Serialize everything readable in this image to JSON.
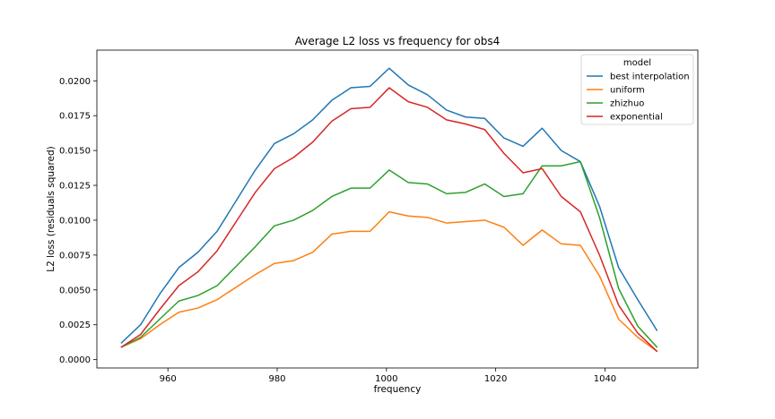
{
  "chart_data": {
    "type": "line",
    "title": "Average L2 loss vs frequency for obs4",
    "xlabel": "frequency",
    "ylabel": "L2 loss (residuals squared)",
    "xlim": [
      947,
      1057
    ],
    "ylim": [
      -0.0006,
      0.0222
    ],
    "xticks": [
      960,
      980,
      1000,
      1020,
      1040
    ],
    "xtick_labels": [
      "960",
      "980",
      "1000",
      "1020",
      "1040"
    ],
    "yticks": [
      0.0,
      0.0025,
      0.005,
      0.0075,
      0.01,
      0.0125,
      0.015,
      0.0175,
      0.02
    ],
    "ytick_labels": [
      "0.0000",
      "0.0025",
      "0.0050",
      "0.0075",
      "0.0100",
      "0.0125",
      "0.0150",
      "0.0175",
      "0.0200"
    ],
    "grid": false,
    "legend": {
      "title": "model",
      "position": "top-right"
    },
    "x": [
      951.5,
      955,
      958.5,
      962,
      965.5,
      969,
      972.5,
      976,
      979.5,
      983,
      986.5,
      990,
      993.5,
      997,
      1000.5,
      1004,
      1007.5,
      1011,
      1014.5,
      1018,
      1021.5,
      1025,
      1028.5,
      1032,
      1035.5,
      1039,
      1042.5,
      1046,
      1049.5
    ],
    "series": [
      {
        "name": "best interpolation",
        "color": "#1f77b4",
        "values": [
          0.0012,
          0.0025,
          0.0047,
          0.0066,
          0.0077,
          0.0092,
          0.0114,
          0.0136,
          0.0155,
          0.0162,
          0.0172,
          0.0186,
          0.0195,
          0.0196,
          0.0209,
          0.0197,
          0.019,
          0.0179,
          0.0174,
          0.0173,
          0.0159,
          0.0153,
          0.0166,
          0.015,
          0.0142,
          0.011,
          0.0066,
          0.0043,
          0.0021
        ]
      },
      {
        "name": "uniform",
        "color": "#ff7f0e",
        "values": [
          0.0009,
          0.0015,
          0.0025,
          0.0034,
          0.0037,
          0.0043,
          0.0052,
          0.0061,
          0.0069,
          0.0071,
          0.0077,
          0.009,
          0.0092,
          0.0092,
          0.0106,
          0.0103,
          0.0102,
          0.0098,
          0.0099,
          0.01,
          0.0095,
          0.0082,
          0.0093,
          0.0083,
          0.0082,
          0.006,
          0.0029,
          0.0016,
          0.0006
        ]
      },
      {
        "name": "zhizhuo",
        "color": "#2ca02c",
        "values": [
          0.0009,
          0.0016,
          0.0029,
          0.0042,
          0.0046,
          0.0053,
          0.0067,
          0.0081,
          0.0096,
          0.01,
          0.0107,
          0.0117,
          0.0123,
          0.0123,
          0.0136,
          0.0127,
          0.0126,
          0.0119,
          0.012,
          0.0126,
          0.0117,
          0.0119,
          0.0139,
          0.0139,
          0.0142,
          0.0102,
          0.0051,
          0.0024,
          0.0009
        ]
      },
      {
        "name": "exponential",
        "color": "#d62728",
        "values": [
          0.0009,
          0.0018,
          0.0036,
          0.0053,
          0.0063,
          0.0078,
          0.0099,
          0.012,
          0.0137,
          0.0145,
          0.0156,
          0.0171,
          0.018,
          0.0181,
          0.0195,
          0.0185,
          0.0181,
          0.0172,
          0.0169,
          0.0165,
          0.0148,
          0.0134,
          0.0137,
          0.0117,
          0.0106,
          0.0075,
          0.0039,
          0.0019,
          0.0006
        ]
      }
    ]
  }
}
